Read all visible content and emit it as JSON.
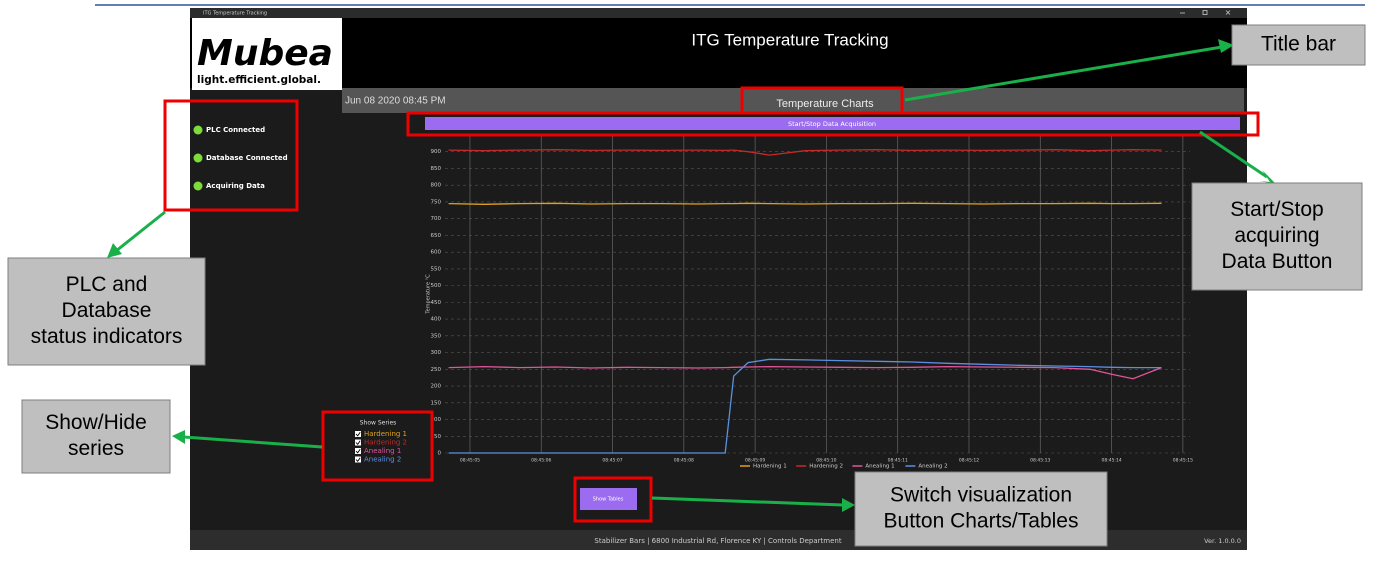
{
  "window_title": "ITG Temperature Tracking",
  "header": {
    "logo": "Mubea",
    "tagline": "light.efficient.global.",
    "title": "ITG Temperature Tracking",
    "datetime": "Jun 08 2020 08:45 PM",
    "section": "Temperature Charts"
  },
  "acquisition_button": "Start/Stop Data Acquisition",
  "status": [
    "PLC Connected",
    "Database Connected",
    "Acquiring Data"
  ],
  "chart_data": {
    "type": "line",
    "ylabel": "Temperature °C",
    "x": [
      4.7,
      5.2,
      5.7,
      6.2,
      6.7,
      7.2,
      7.7,
      8.2,
      8.58,
      8.7,
      8.9,
      9.2,
      9.7,
      10.2,
      10.7,
      11.2,
      11.7,
      12.2,
      12.7,
      13.2,
      13.7,
      14.0,
      14.3,
      14.7
    ],
    "xlim": [
      4.65,
      15.1
    ],
    "xticks": [
      {
        "value": 5,
        "label": "08:45:05"
      },
      {
        "value": 6,
        "label": "08:45:06"
      },
      {
        "value": 7,
        "label": "08:45:07"
      },
      {
        "value": 8,
        "label": "08:45:08"
      },
      {
        "value": 9,
        "label": "08:45:09"
      },
      {
        "value": 10,
        "label": "08:45:10"
      },
      {
        "value": 11,
        "label": "08:45:11"
      },
      {
        "value": 12,
        "label": "08:45:12"
      },
      {
        "value": 13,
        "label": "08:45:13"
      },
      {
        "value": 14,
        "label": "08:45:14"
      },
      {
        "value": 15,
        "label": "08:45:15"
      }
    ],
    "ylim": [
      0,
      950
    ],
    "yticks": [
      0,
      50,
      100,
      150,
      200,
      250,
      300,
      350,
      400,
      450,
      500,
      550,
      600,
      650,
      700,
      750,
      800,
      850,
      900
    ],
    "grid": true,
    "series": [
      {
        "name": "Hardening 1",
        "color": "#e0a21a",
        "values": [
          745,
          743,
          745,
          746,
          744,
          745,
          745,
          744,
          745,
          745,
          746,
          745,
          744,
          745,
          745,
          746,
          745,
          744,
          745,
          745,
          746,
          745,
          745,
          746
        ]
      },
      {
        "name": "Hardening 2",
        "color": "#c42a2a",
        "values": [
          905,
          903,
          905,
          906,
          904,
          905,
          904,
          905,
          904,
          905,
          900,
          890,
          903,
          905,
          906,
          904,
          905,
          904,
          905,
          906,
          903,
          905,
          906,
          905
        ]
      },
      {
        "name": "Anealing 1",
        "color": "#e0569a",
        "values": [
          255,
          258,
          255,
          257,
          254,
          256,
          255,
          254,
          255,
          256,
          257,
          258,
          257,
          256,
          255,
          256,
          258,
          257,
          256,
          255,
          250,
          235,
          222,
          255
        ]
      },
      {
        "name": "Anealing 2",
        "color": "#5b8fe0",
        "values": [
          0,
          0,
          0,
          0,
          0,
          0,
          0,
          0,
          0,
          230,
          270,
          280,
          278,
          276,
          274,
          272,
          268,
          265,
          262,
          260,
          258,
          256,
          255,
          255
        ]
      }
    ]
  },
  "show_series_title": "Show Series",
  "tables_button": "Show Tables",
  "footer": {
    "address": "Stabilizer Bars | 6800 Industrial Rd, Florence KY | Controls Department",
    "version": "Ver. 1.0.0.0"
  },
  "callouts": [
    {
      "lines": [
        "Title bar"
      ]
    },
    {
      "lines": [
        "Start/Stop",
        "acquiring",
        "Data Button"
      ]
    },
    {
      "lines": [
        "PLC and",
        "Database",
        "status indicators"
      ]
    },
    {
      "lines": [
        "Show/Hide",
        "series"
      ]
    },
    {
      "lines": [
        "Switch visualization",
        "Button Charts/Tables"
      ]
    }
  ]
}
